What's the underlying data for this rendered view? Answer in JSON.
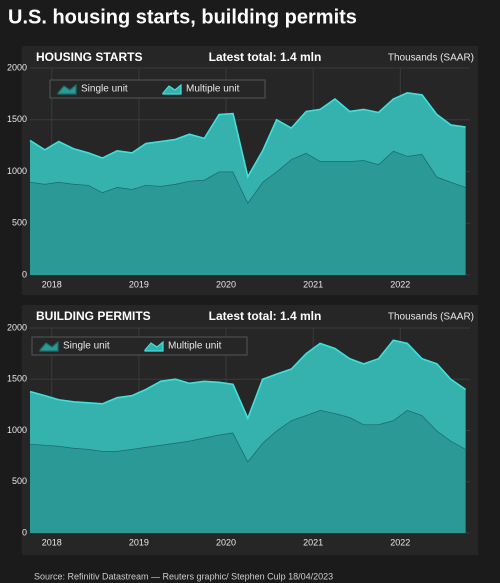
{
  "title": "U.S. housing starts, building permits",
  "source": "Source: Refinitiv Datastream — Reuters graphic/ Stephen Culp 18/04/2023",
  "chart_data": [
    {
      "type": "stacked-area",
      "title": "HOUSING STARTS",
      "subtitle": "Latest total: 1.4 mln",
      "y_label": "Thousands (SAAR)",
      "x": [
        2017.75,
        2017.92,
        2018.08,
        2018.25,
        2018.42,
        2018.58,
        2018.75,
        2018.92,
        2019.08,
        2019.25,
        2019.42,
        2019.58,
        2019.75,
        2019.92,
        2020.08,
        2020.25,
        2020.42,
        2020.58,
        2020.75,
        2020.92,
        2021.08,
        2021.25,
        2021.42,
        2021.58,
        2021.75,
        2021.92,
        2022.08,
        2022.25,
        2022.42,
        2022.58,
        2022.75
      ],
      "series": [
        {
          "name": "Single unit",
          "color": "#1c6f6d",
          "fill": "#2b9995",
          "values": [
            900,
            880,
            900,
            880,
            870,
            800,
            850,
            830,
            870,
            860,
            880,
            910,
            920,
            1000,
            1000,
            700,
            900,
            1000,
            1120,
            1180,
            1100,
            1100,
            1100,
            1110,
            1070,
            1200,
            1150,
            1170,
            950,
            900,
            850
          ]
        },
        {
          "name": "Multiple unit",
          "color": "#40e0dc",
          "fill": "#35b2ae",
          "values": [
            400,
            330,
            390,
            340,
            310,
            330,
            350,
            350,
            400,
            430,
            430,
            450,
            400,
            550,
            560,
            250,
            300,
            500,
            300,
            400,
            500,
            600,
            480,
            490,
            500,
            500,
            610,
            570,
            600,
            550,
            580
          ]
        }
      ],
      "xlim": [
        2017.75,
        2022.8
      ],
      "xticks": [
        2018,
        2019,
        2020,
        2021,
        2022
      ],
      "ylim": [
        0,
        2000
      ],
      "yticks": [
        0,
        500,
        1000,
        1500,
        2000
      ],
      "grid": true
    },
    {
      "type": "stacked-area",
      "title": "BUILDING PERMITS",
      "subtitle": "Latest total: 1.4 mln",
      "y_label": "Thousands (SAAR)",
      "x": [
        2017.75,
        2017.92,
        2018.08,
        2018.25,
        2018.42,
        2018.58,
        2018.75,
        2018.92,
        2019.08,
        2019.25,
        2019.42,
        2019.58,
        2019.75,
        2019.92,
        2020.08,
        2020.25,
        2020.42,
        2020.58,
        2020.75,
        2020.92,
        2021.08,
        2021.25,
        2021.42,
        2021.58,
        2021.75,
        2021.92,
        2022.08,
        2022.25,
        2022.42,
        2022.58,
        2022.75
      ],
      "series": [
        {
          "name": "Single unit",
          "color": "#1c6f6d",
          "fill": "#2b9995",
          "values": [
            870,
            860,
            850,
            830,
            820,
            800,
            800,
            820,
            840,
            860,
            880,
            900,
            930,
            960,
            980,
            700,
            880,
            1000,
            1100,
            1150,
            1200,
            1170,
            1130,
            1060,
            1060,
            1100,
            1200,
            1150,
            1000,
            900,
            820
          ]
        },
        {
          "name": "Multiple unit",
          "color": "#40e0dc",
          "fill": "#35b2ae",
          "values": [
            510,
            480,
            450,
            450,
            450,
            460,
            520,
            520,
            560,
            620,
            620,
            560,
            550,
            510,
            470,
            420,
            620,
            550,
            500,
            600,
            650,
            630,
            570,
            590,
            640,
            780,
            650,
            550,
            650,
            600,
            580
          ]
        }
      ],
      "xlim": [
        2017.75,
        2022.8
      ],
      "xticks": [
        2018,
        2019,
        2020,
        2021,
        2022
      ],
      "ylim": [
        0,
        2000
      ],
      "yticks": [
        0,
        500,
        1000,
        1500,
        2000
      ],
      "grid": true
    }
  ]
}
